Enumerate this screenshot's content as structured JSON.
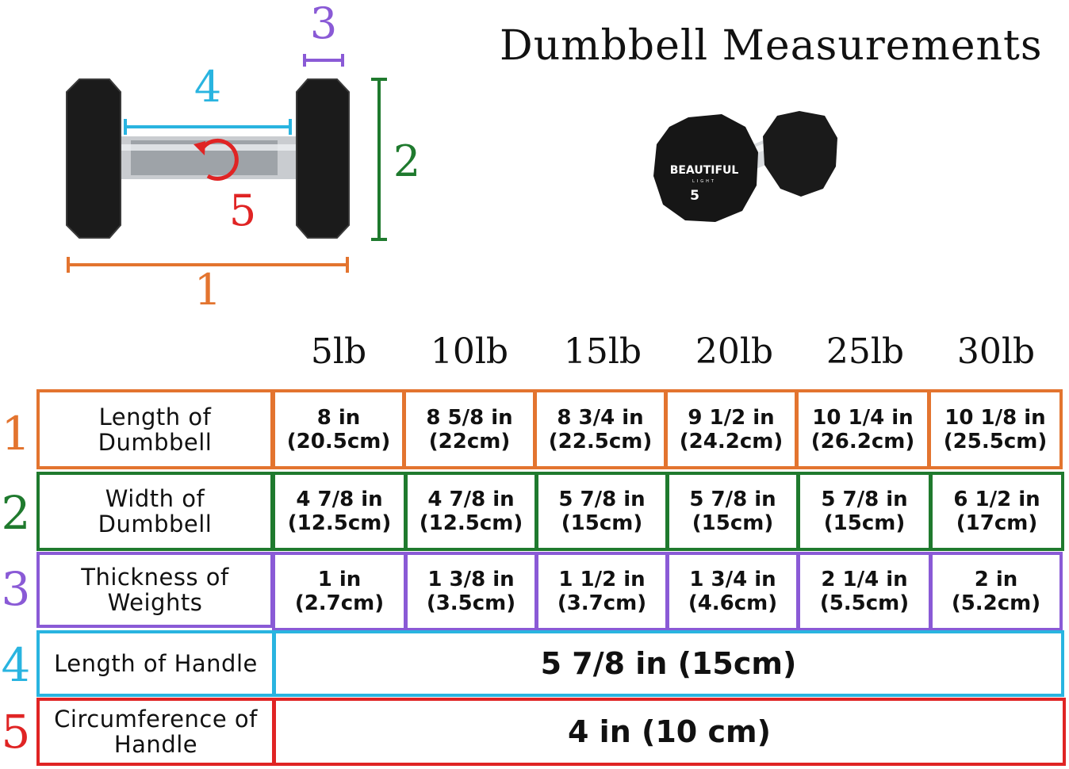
{
  "title": "Dumbbell Measurements",
  "diagram_markers": [
    "1",
    "2",
    "3",
    "4",
    "5"
  ],
  "product": {
    "brand": "BEAUTIFUL",
    "sub": "LIGHT",
    "weight_mark": "5"
  },
  "weights": [
    "5lb",
    "10lb",
    "15lb",
    "20lb",
    "25lb",
    "30lb"
  ],
  "colors": {
    "row1": "#e3742f",
    "row2": "#1f7a2e",
    "row3": "#8a5ad6",
    "row4": "#29b4e0",
    "row5": "#e02424"
  },
  "rows": [
    {
      "num": "1",
      "label_lines": [
        "Length of",
        "Dumbbell"
      ],
      "cells": [
        [
          "8 in",
          "(20.5cm)"
        ],
        [
          "8 5/8 in",
          "(22cm)"
        ],
        [
          "8 3/4 in",
          "(22.5cm)"
        ],
        [
          "9 1/2 in",
          "(24.2cm)"
        ],
        [
          "10 1/4 in",
          "(26.2cm)"
        ],
        [
          "10 1/8 in",
          "(25.5cm)"
        ]
      ]
    },
    {
      "num": "2",
      "label_lines": [
        "Width of",
        "Dumbbell"
      ],
      "cells": [
        [
          "4 7/8 in",
          "(12.5cm)"
        ],
        [
          "4 7/8 in",
          "(12.5cm)"
        ],
        [
          "5 7/8 in",
          "(15cm)"
        ],
        [
          "5 7/8 in",
          "(15cm)"
        ],
        [
          "5 7/8 in",
          "(15cm)"
        ],
        [
          "6 1/2 in",
          "(17cm)"
        ]
      ]
    },
    {
      "num": "3",
      "label_lines": [
        "Thickness of",
        "Weights"
      ],
      "cells": [
        [
          "1 in",
          "(2.7cm)"
        ],
        [
          "1 3/8 in",
          "(3.5cm)"
        ],
        [
          "1 1/2 in",
          "(3.7cm)"
        ],
        [
          "1 3/4 in",
          "(4.6cm)"
        ],
        [
          "2 1/4 in",
          "(5.5cm)"
        ],
        [
          "2 in",
          "(5.2cm)"
        ]
      ]
    },
    {
      "num": "4",
      "label_lines": [
        "Length of Handle"
      ],
      "value": "5 7/8 in (15cm)"
    },
    {
      "num": "5",
      "label_lines": [
        "Circumference of",
        "Handle"
      ],
      "value": "4 in (10 cm)"
    }
  ]
}
